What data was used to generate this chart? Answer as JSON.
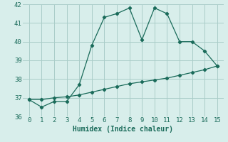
{
  "xlabel": "Humidex (Indice chaleur)",
  "line1_x": [
    0,
    1,
    2,
    3,
    4,
    5,
    6,
    7,
    8,
    9,
    10,
    11,
    12,
    13,
    14,
    15
  ],
  "line1_y": [
    36.9,
    36.5,
    36.8,
    36.8,
    37.7,
    39.8,
    41.3,
    41.5,
    41.8,
    40.1,
    41.8,
    41.5,
    40.0,
    40.0,
    39.5,
    38.7
  ],
  "line2_x": [
    0,
    1,
    2,
    3,
    4,
    5,
    6,
    7,
    8,
    9,
    10,
    11,
    12,
    13,
    14,
    15
  ],
  "line2_y": [
    36.9,
    36.9,
    37.0,
    37.05,
    37.15,
    37.3,
    37.45,
    37.6,
    37.75,
    37.85,
    37.95,
    38.05,
    38.2,
    38.35,
    38.5,
    38.7
  ],
  "line_color": "#1a6b5a",
  "bg_color": "#d8eeeb",
  "grid_color": "#aaccc8",
  "xlim": [
    -0.5,
    15.5
  ],
  "ylim": [
    36,
    42
  ],
  "yticks": [
    36,
    37,
    38,
    39,
    40,
    41,
    42
  ],
  "xticks": [
    0,
    1,
    2,
    3,
    4,
    5,
    6,
    7,
    8,
    9,
    10,
    11,
    12,
    13,
    14,
    15
  ],
  "xlabel_fontsize": 7,
  "tick_fontsize": 6.5
}
